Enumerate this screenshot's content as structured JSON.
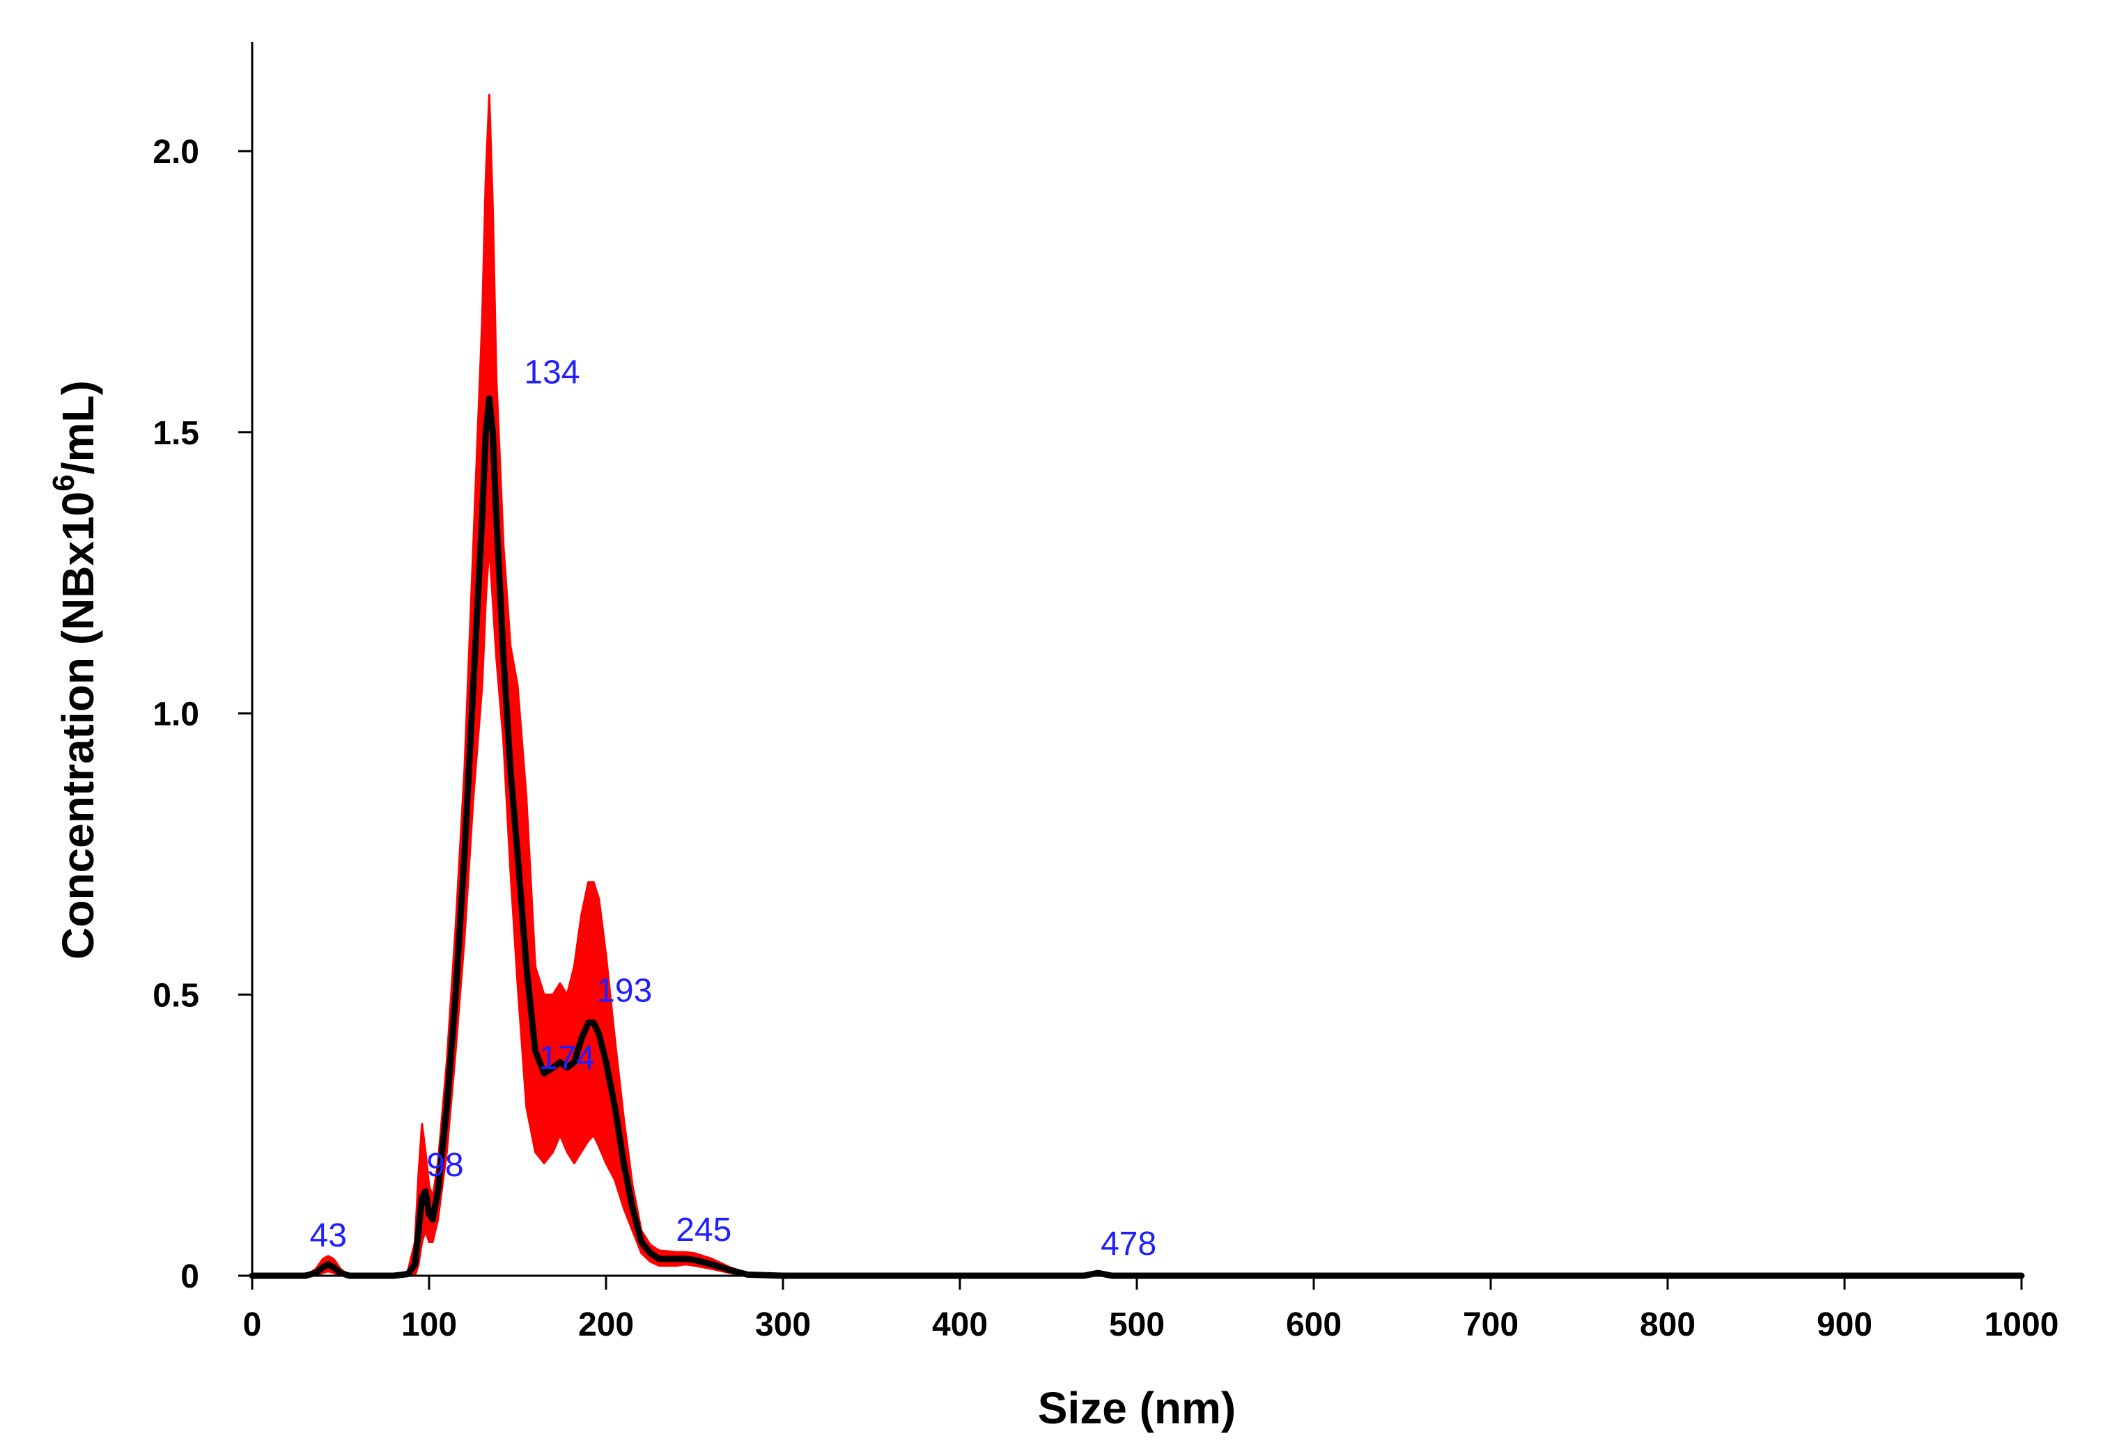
{
  "colors": {
    "mean_line": "#000000",
    "error_band": "#ff0000",
    "peak_labels": "#1f1fff",
    "axis": "#000000"
  },
  "chart_data": {
    "type": "line",
    "title": "",
    "xlabel": "Size (nm)",
    "ylabel": {
      "prefix": "Concentration (NBx10",
      "superscript": "6",
      "suffix": "/mL)"
    },
    "xlim": [
      0,
      1000
    ],
    "ylim": [
      0,
      2.2
    ],
    "x_ticks": [
      0,
      100,
      200,
      300,
      400,
      500,
      600,
      700,
      800,
      900,
      1000
    ],
    "x_tick_labels": [
      "0",
      "100",
      "200",
      "300",
      "400",
      "500",
      "600",
      "700",
      "800",
      "900",
      "1000"
    ],
    "y_ticks": [
      0,
      0.5,
      1.0,
      1.5,
      2.0
    ],
    "y_tick_labels": [
      "0",
      "0.5",
      "1.0",
      "1.5",
      "2.0"
    ],
    "grid": false,
    "series": [
      {
        "name": "Mean concentration",
        "style": "line",
        "x": [
          0,
          30,
          36,
          40,
          43,
          46,
          50,
          55,
          80,
          88,
          92,
          94,
          96,
          98,
          100,
          102,
          105,
          110,
          115,
          120,
          125,
          130,
          132,
          134,
          136,
          138,
          142,
          146,
          150,
          155,
          160,
          165,
          170,
          174,
          178,
          182,
          186,
          190,
          193,
          196,
          200,
          205,
          210,
          215,
          220,
          225,
          230,
          240,
          245,
          250,
          260,
          270,
          280,
          300,
          470,
          478,
          486,
          500,
          1000
        ],
        "y": [
          0,
          0,
          0.005,
          0.015,
          0.02,
          0.015,
          0.005,
          0,
          0,
          0.003,
          0.02,
          0.08,
          0.14,
          0.15,
          0.11,
          0.1,
          0.15,
          0.3,
          0.5,
          0.75,
          1.05,
          1.35,
          1.5,
          1.56,
          1.5,
          1.35,
          1.1,
          0.9,
          0.75,
          0.55,
          0.4,
          0.36,
          0.37,
          0.38,
          0.37,
          0.38,
          0.42,
          0.45,
          0.45,
          0.43,
          0.38,
          0.3,
          0.2,
          0.12,
          0.06,
          0.04,
          0.03,
          0.03,
          0.03,
          0.028,
          0.02,
          0.01,
          0.002,
          0,
          0,
          0.005,
          0,
          0,
          0
        ]
      },
      {
        "name": "Error band (upper)",
        "style": "band-upper",
        "x": [
          0,
          30,
          36,
          40,
          43,
          46,
          50,
          55,
          80,
          88,
          92,
          94,
          96,
          98,
          100,
          102,
          105,
          110,
          115,
          120,
          125,
          130,
          132,
          134,
          136,
          138,
          142,
          146,
          150,
          155,
          160,
          165,
          170,
          174,
          178,
          182,
          186,
          190,
          193,
          196,
          200,
          205,
          210,
          215,
          220,
          225,
          230,
          240,
          245,
          250,
          260,
          270,
          280,
          300,
          470,
          478,
          486,
          500,
          1000
        ],
        "y": [
          0,
          0,
          0.012,
          0.03,
          0.035,
          0.03,
          0.012,
          0,
          0,
          0.008,
          0.06,
          0.18,
          0.27,
          0.22,
          0.16,
          0.14,
          0.2,
          0.38,
          0.62,
          0.9,
          1.3,
          1.7,
          1.95,
          2.1,
          1.9,
          1.6,
          1.3,
          1.12,
          1.05,
          0.85,
          0.55,
          0.5,
          0.5,
          0.52,
          0.5,
          0.55,
          0.64,
          0.7,
          0.7,
          0.67,
          0.57,
          0.42,
          0.28,
          0.16,
          0.08,
          0.055,
          0.045,
          0.042,
          0.042,
          0.04,
          0.03,
          0.015,
          0.005,
          0,
          0,
          0.008,
          0,
          0,
          0
        ]
      },
      {
        "name": "Error band (lower)",
        "style": "band-lower",
        "x": [
          0,
          30,
          36,
          40,
          43,
          46,
          50,
          55,
          80,
          88,
          92,
          94,
          96,
          98,
          100,
          102,
          105,
          110,
          115,
          120,
          125,
          130,
          132,
          134,
          136,
          138,
          142,
          146,
          150,
          155,
          160,
          165,
          170,
          174,
          178,
          182,
          186,
          190,
          193,
          196,
          200,
          205,
          210,
          215,
          220,
          225,
          230,
          240,
          245,
          250,
          260,
          270,
          280,
          300,
          470,
          478,
          486,
          500,
          1000
        ],
        "y": [
          0,
          0,
          0,
          0.005,
          0.008,
          0.005,
          0,
          0,
          0,
          0,
          0,
          0.02,
          0.06,
          0.08,
          0.06,
          0.06,
          0.1,
          0.22,
          0.4,
          0.6,
          0.85,
          1.05,
          1.2,
          1.3,
          1.2,
          1.1,
          0.95,
          0.72,
          0.52,
          0.3,
          0.22,
          0.2,
          0.22,
          0.25,
          0.22,
          0.2,
          0.22,
          0.24,
          0.25,
          0.23,
          0.2,
          0.17,
          0.12,
          0.08,
          0.04,
          0.025,
          0.018,
          0.018,
          0.02,
          0.018,
          0.012,
          0.005,
          0,
          0,
          0,
          0.002,
          0,
          0,
          0
        ]
      }
    ],
    "annotations": [
      {
        "text": "43",
        "x": 43,
        "y": 0.02
      },
      {
        "text": "98",
        "x": 98,
        "y": 0.15
      },
      {
        "text": "134",
        "x": 134,
        "y": 1.56
      },
      {
        "text": "174",
        "x": 174,
        "y": 0.38
      },
      {
        "text": "193",
        "x": 193,
        "y": 0.45
      },
      {
        "text": "245",
        "x": 245,
        "y": 0.03
      },
      {
        "text": "478",
        "x": 478,
        "y": 0.005
      }
    ]
  }
}
